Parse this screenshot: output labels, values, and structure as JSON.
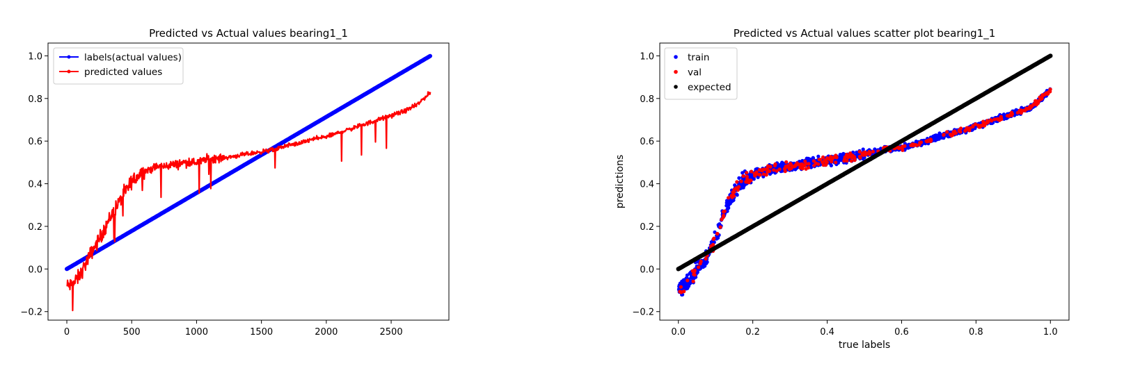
{
  "chart_data": [
    {
      "type": "line",
      "title": "Predicted vs Actual values bearing1_1",
      "xlabel": "",
      "ylabel": "",
      "xlim": [
        -145,
        2945
      ],
      "ylim": [
        -0.24,
        1.06
      ],
      "xticks": [
        0,
        500,
        1000,
        1500,
        2000,
        2500
      ],
      "xtick_labels": [
        "0",
        "500",
        "1000",
        "1500",
        "2000",
        "2500"
      ],
      "yticks": [
        -0.2,
        0.0,
        0.2,
        0.4,
        0.6,
        0.8,
        1.0
      ],
      "ytick_labels": [
        "−0.2",
        "0.0",
        "0.2",
        "0.4",
        "0.6",
        "0.8",
        "1.0"
      ],
      "legend": "top-left",
      "num_points": 2803,
      "series": [
        {
          "name": "labels(actual values)",
          "color": "#0000ff",
          "description": "linear from 0 to 1 over index 0..2803",
          "x": [
            0,
            2803
          ],
          "y": [
            0.0,
            1.0
          ]
        },
        {
          "name": "predicted values",
          "color": "#ff0000",
          "x": [
            0,
            50,
            100,
            150,
            200,
            250,
            300,
            350,
            400,
            450,
            500,
            550,
            600,
            650,
            700,
            750,
            800,
            850,
            900,
            950,
            1000,
            1100,
            1200,
            1300,
            1400,
            1500,
            1600,
            1700,
            1800,
            1900,
            2000,
            2100,
            2200,
            2300,
            2400,
            2500,
            2600,
            2700,
            2803
          ],
          "y": [
            -0.08,
            -0.07,
            -0.03,
            0.03,
            0.09,
            0.14,
            0.2,
            0.26,
            0.31,
            0.36,
            0.41,
            0.44,
            0.46,
            0.47,
            0.48,
            0.48,
            0.49,
            0.49,
            0.5,
            0.5,
            0.5,
            0.52,
            0.52,
            0.53,
            0.54,
            0.55,
            0.56,
            0.58,
            0.59,
            0.61,
            0.62,
            0.64,
            0.66,
            0.68,
            0.7,
            0.72,
            0.74,
            0.77,
            0.83
          ]
        }
      ]
    },
    {
      "type": "scatter",
      "title": "Predicted vs Actual values scatter plot bearing1_1",
      "xlabel": "true labels",
      "ylabel": "predictions",
      "xlim": [
        -0.05,
        1.05
      ],
      "ylim": [
        -0.24,
        1.06
      ],
      "xticks": [
        0.0,
        0.2,
        0.4,
        0.6,
        0.8,
        1.0
      ],
      "xtick_labels": [
        "0.0",
        "0.2",
        "0.4",
        "0.6",
        "0.8",
        "1.0"
      ],
      "yticks": [
        -0.2,
        0.0,
        0.2,
        0.4,
        0.6,
        0.8,
        1.0
      ],
      "ytick_labels": [
        "−0.2",
        "0.0",
        "0.2",
        "0.4",
        "0.6",
        "0.8",
        "1.0"
      ],
      "legend": "top-left",
      "series": [
        {
          "name": "train",
          "color": "#0000ff",
          "x": [
            0.0,
            0.02,
            0.04,
            0.06,
            0.08,
            0.1,
            0.12,
            0.14,
            0.16,
            0.18,
            0.2,
            0.25,
            0.3,
            0.35,
            0.4,
            0.45,
            0.5,
            0.55,
            0.6,
            0.65,
            0.7,
            0.75,
            0.8,
            0.85,
            0.9,
            0.95,
            1.0
          ],
          "y": [
            -0.1,
            -0.07,
            -0.03,
            0.02,
            0.07,
            0.15,
            0.25,
            0.33,
            0.39,
            0.42,
            0.44,
            0.47,
            0.48,
            0.5,
            0.51,
            0.52,
            0.54,
            0.56,
            0.57,
            0.59,
            0.62,
            0.64,
            0.67,
            0.7,
            0.73,
            0.76,
            0.84
          ]
        },
        {
          "name": "val",
          "color": "#ff0000",
          "x": [
            0.0,
            0.02,
            0.04,
            0.06,
            0.08,
            0.1,
            0.12,
            0.14,
            0.16,
            0.18,
            0.2,
            0.25,
            0.3,
            0.35,
            0.4,
            0.45,
            0.5,
            0.55,
            0.6,
            0.65,
            0.7,
            0.75,
            0.8,
            0.85,
            0.9,
            0.95,
            1.0
          ],
          "y": [
            -0.1,
            -0.07,
            -0.03,
            0.02,
            0.07,
            0.15,
            0.25,
            0.33,
            0.39,
            0.42,
            0.44,
            0.47,
            0.48,
            0.5,
            0.51,
            0.52,
            0.54,
            0.56,
            0.57,
            0.59,
            0.62,
            0.64,
            0.67,
            0.7,
            0.73,
            0.76,
            0.84
          ]
        },
        {
          "name": "expected",
          "color": "#000000",
          "description": "y = x",
          "x": [
            0.0,
            1.0
          ],
          "y": [
            0.0,
            1.0
          ]
        }
      ]
    }
  ]
}
